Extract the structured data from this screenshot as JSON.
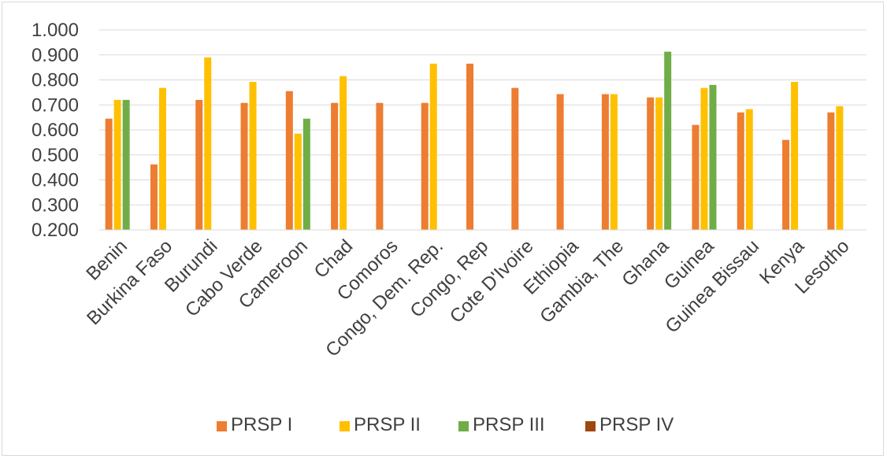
{
  "chart_data": {
    "type": "bar",
    "categories": [
      "Benin",
      "Burkina Faso",
      "Burundi",
      "Cabo Verde",
      "Cameroon",
      "Chad",
      "Comoros",
      "Congo, Dem. Rep.",
      "Congo, Rep",
      "Cote D'Ivoire",
      "Ethiopia",
      "Gambia, The",
      "Ghana",
      "Guinea",
      "Guinea Bissau",
      "Kenya",
      "Lesotho"
    ],
    "series": [
      {
        "name": "PRSP I",
        "color": "#ED7D31",
        "values": [
          0.645,
          0.462,
          0.72,
          0.708,
          0.755,
          0.708,
          0.708,
          0.708,
          0.865,
          0.768,
          0.743,
          0.743,
          0.73,
          0.62,
          0.67,
          0.56,
          0.67
        ]
      },
      {
        "name": "PRSP II",
        "color": "#FFC000",
        "values": [
          0.72,
          0.768,
          0.89,
          0.792,
          0.585,
          0.815,
          null,
          0.865,
          null,
          null,
          null,
          0.743,
          0.73,
          0.768,
          0.683,
          0.792,
          0.695
        ]
      },
      {
        "name": "PRSP III",
        "color": "#70AD47",
        "values": [
          0.72,
          null,
          null,
          null,
          0.645,
          null,
          null,
          null,
          null,
          null,
          null,
          null,
          0.913,
          0.78,
          null,
          null,
          null
        ]
      },
      {
        "name": "PRSP IV",
        "color": "#9E480E",
        "values": [
          null,
          null,
          null,
          null,
          null,
          null,
          null,
          null,
          null,
          null,
          null,
          null,
          null,
          null,
          null,
          null,
          null
        ]
      }
    ],
    "yticks": [
      "1.000",
      "0.900",
      "0.800",
      "0.700",
      "0.600",
      "0.500",
      "0.400",
      "0.300",
      "0.200"
    ],
    "ylim": [
      0.2,
      1.0
    ],
    "grid": true,
    "legend": "bottom"
  }
}
